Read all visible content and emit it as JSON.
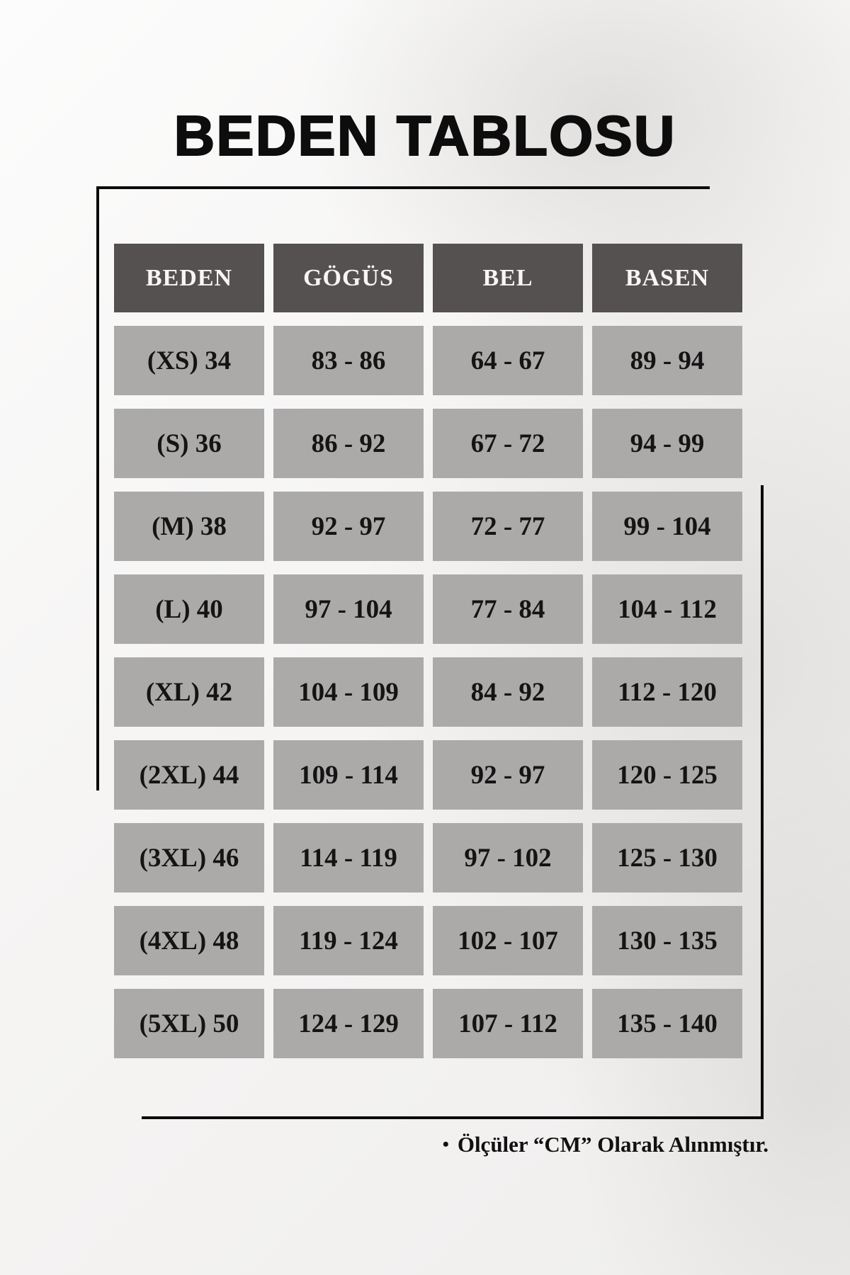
{
  "title": "BEDEN TABLOSU",
  "chart_data": {
    "type": "table",
    "title": "BEDEN TABLOSU",
    "unit": "cm",
    "columns": [
      "BEDEN",
      "GÖGÜS",
      "BEL",
      "BASEN"
    ],
    "rows": [
      [
        "(XS) 34",
        "83 - 86",
        "64 - 67",
        "89 - 94"
      ],
      [
        "(S) 36",
        "86 - 92",
        "67 - 72",
        "94 - 99"
      ],
      [
        "(M) 38",
        "92 - 97",
        "72 - 77",
        "99 - 104"
      ],
      [
        "(L) 40",
        "97 - 104",
        "77 - 84",
        "104 - 112"
      ],
      [
        "(XL) 42",
        "104 - 109",
        "84 - 92",
        "112 - 120"
      ],
      [
        "(2XL) 44",
        "109 - 114",
        "92 - 97",
        "120 - 125"
      ],
      [
        "(3XL) 46",
        "114 - 119",
        "97 - 102",
        "125 - 130"
      ],
      [
        "(4XL) 48",
        "119 - 124",
        "102 - 107",
        "130 - 135"
      ],
      [
        "(5XL) 50",
        "124 - 129",
        "107 - 112",
        "135 - 140"
      ]
    ]
  },
  "footer": {
    "bullet": "•",
    "note": "Ölçüler “CM” Olarak Alınmıştır."
  },
  "colors": {
    "header_bg": "#545150",
    "cell_bg": "#acaaa9",
    "cell_text": "#141414",
    "header_text": "#f7f6f4",
    "frame_line": "#0b0b0b",
    "background": "#f4f3f2"
  }
}
